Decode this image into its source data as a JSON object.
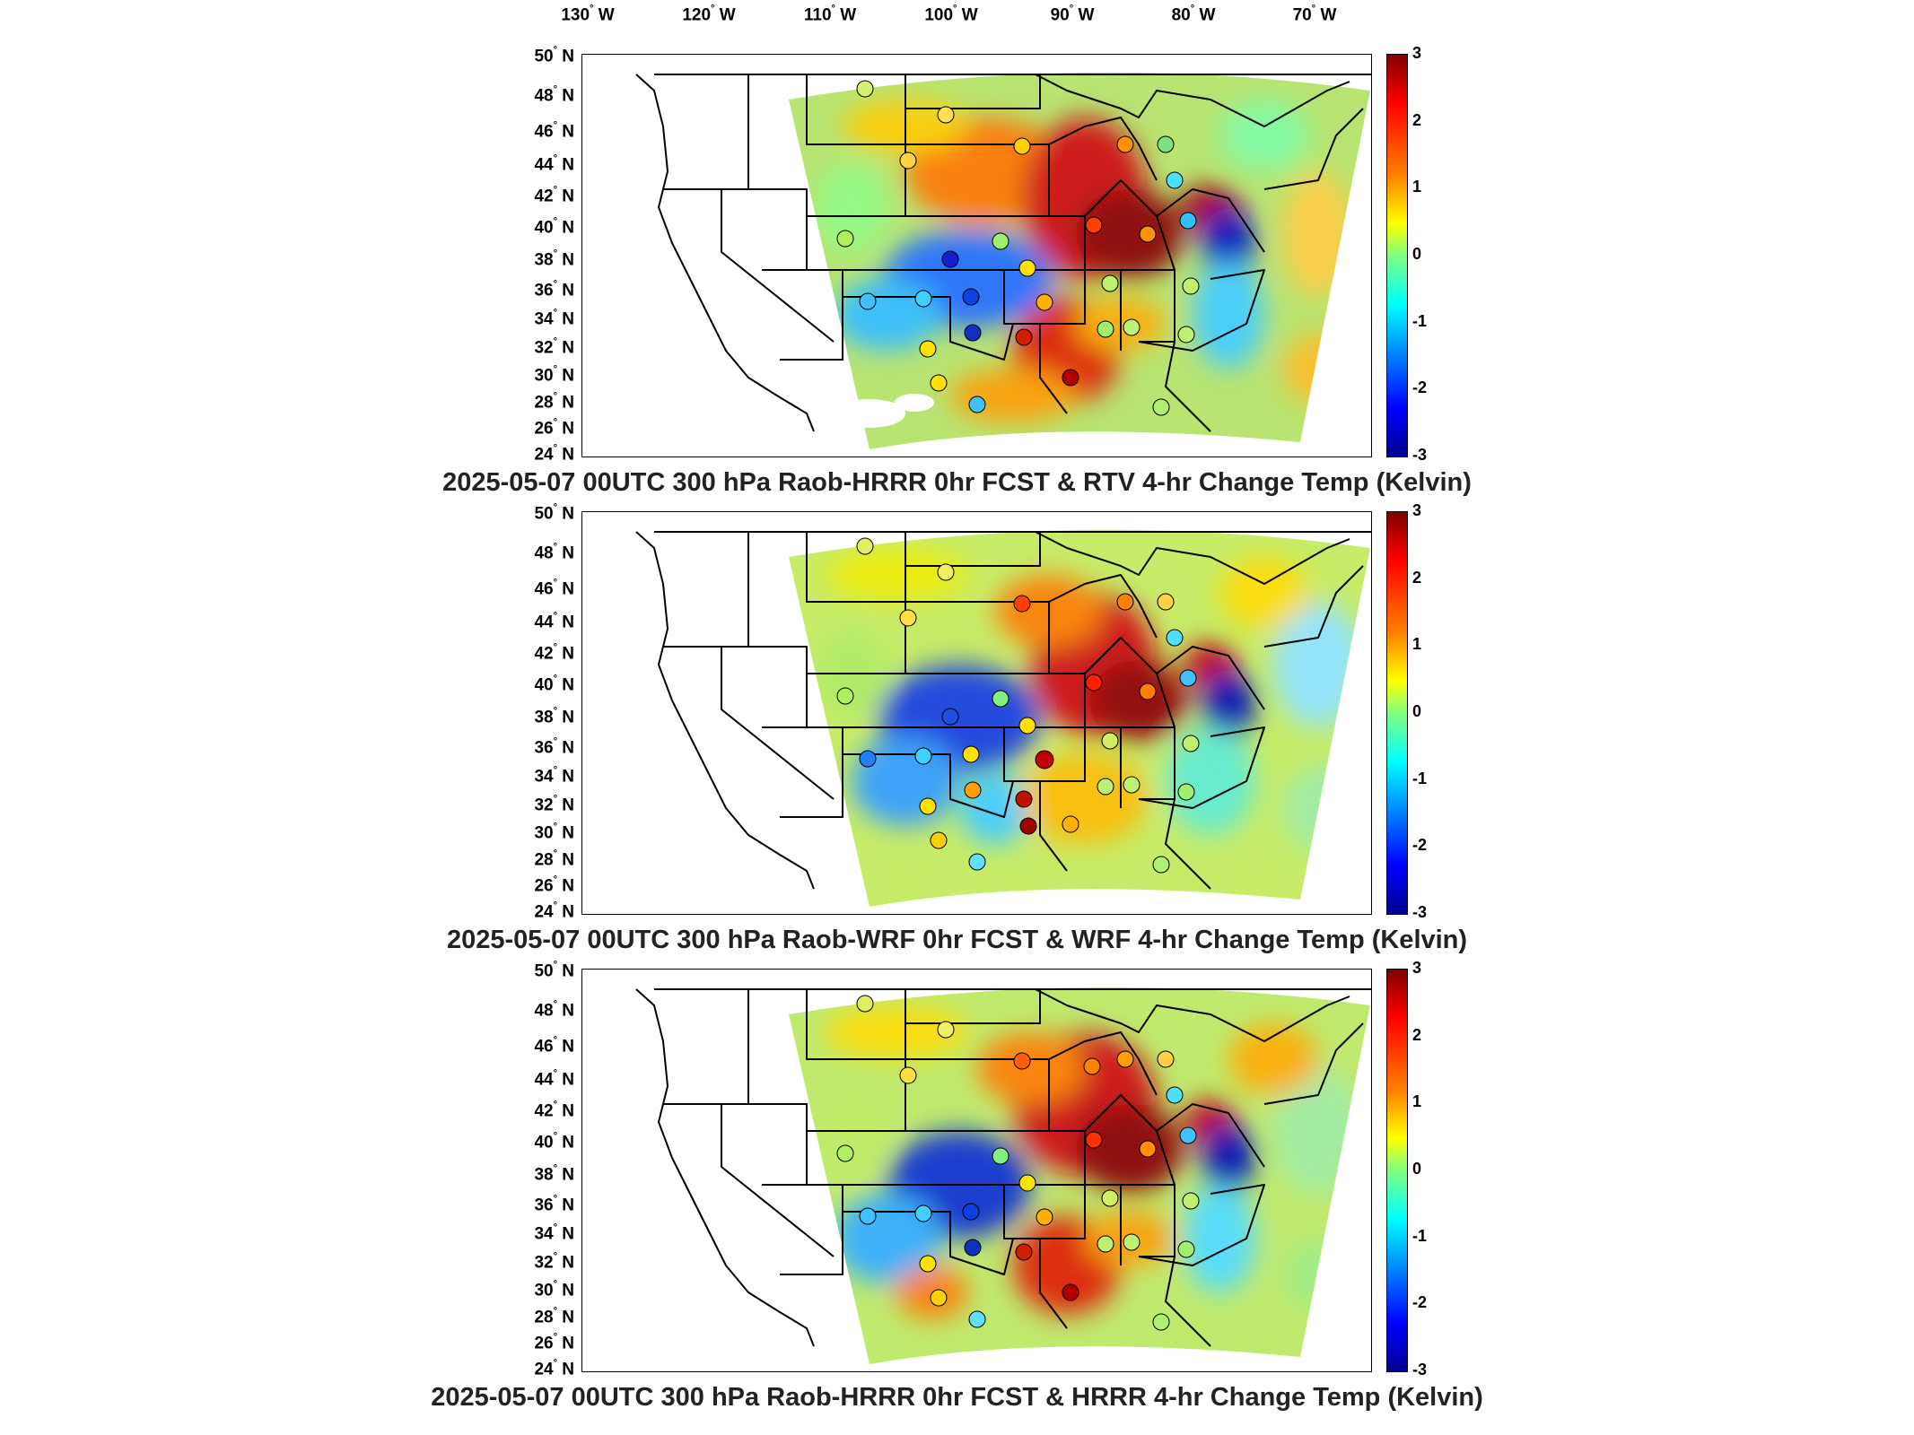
{
  "lon_labels": [
    "130",
    "120",
    "110",
    "100",
    "90",
    "80",
    "70"
  ],
  "lon_suffix": "W",
  "lat_labels": [
    "50",
    "48",
    "46",
    "44",
    "42",
    "40",
    "38",
    "36",
    "34",
    "32",
    "30",
    "28",
    "26",
    "24"
  ],
  "lat_suffix": "N",
  "degree_symbol": "°",
  "colorbar": {
    "ticks": [
      "3",
      "2",
      "1",
      "0",
      "-1",
      "-2",
      "-3"
    ],
    "colors": [
      "#7f0000",
      "#ff0000",
      "#ff8000",
      "#ffff00",
      "#80ff80",
      "#00ffff",
      "#0080ff",
      "#0000ff",
      "#00008f"
    ]
  },
  "panels": [
    {
      "title": "2025-05-07 00UTC 300 hPa Raob-HRRR 0hr FCST & RTV 4-hr Change Temp (Kelvin)"
    },
    {
      "title": "2025-05-07 00UTC 300 hPa Raob-WRF 0hr FCST & WRF 4-hr Change Temp (Kelvin)"
    },
    {
      "title": "2025-05-07 00UTC 300 hPa Raob-HRRR 0hr FCST & HRRR 4-hr Change Temp (Kelvin)"
    }
  ]
}
